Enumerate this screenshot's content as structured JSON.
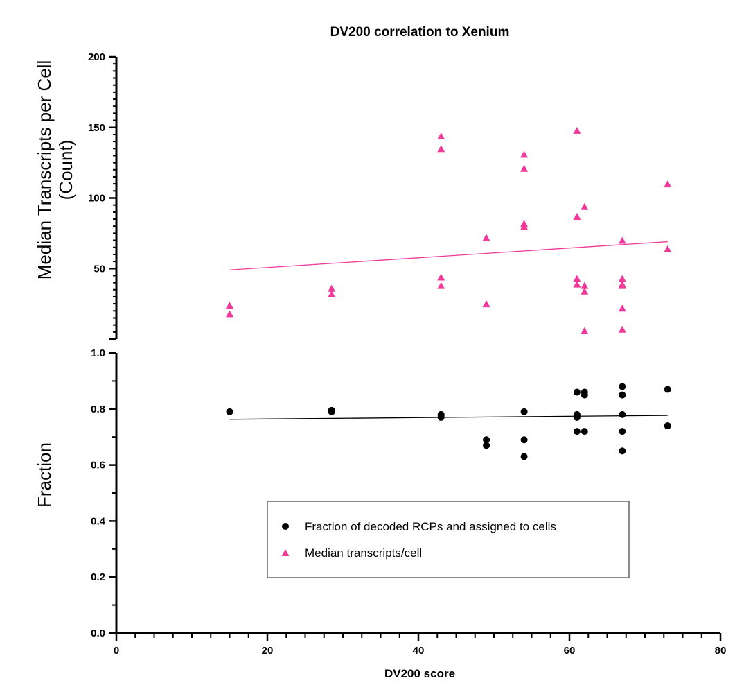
{
  "chart_data": {
    "type": "scatter",
    "title": "DV200 correlation to Xenium",
    "xlabel": "DV200 score",
    "xlim": [
      0,
      80
    ],
    "x_ticks": [
      "0",
      "20",
      "40",
      "60",
      "80"
    ],
    "grid": false,
    "legend_placement": "bottom-center",
    "panels": {
      "top": {
        "ylabel_line1": "Median Transcripts per Cell",
        "ylabel_line2": "(Count)",
        "ylim": [
          0,
          200
        ],
        "y_ticks": [
          "50",
          "100",
          "150",
          "200"
        ]
      },
      "bottom": {
        "ylabel": "Fraction",
        "ylim": [
          0,
          1.0
        ],
        "y_ticks": [
          "0.0",
          "0.2",
          "0.4",
          "0.6",
          "0.8",
          "1.0"
        ]
      }
    },
    "series": [
      {
        "name": "Fraction of decoded RCPs and assigned to cells",
        "panel": "bottom",
        "marker": "circle",
        "color": "#000000",
        "x": [
          15,
          28.5,
          28.5,
          43,
          43,
          43,
          49,
          49,
          54,
          54,
          54,
          61,
          61,
          61,
          61,
          61,
          62,
          62,
          62,
          67,
          67,
          67,
          67,
          67,
          73,
          73
        ],
        "y": [
          0.79,
          0.795,
          0.79,
          0.78,
          0.775,
          0.77,
          0.69,
          0.67,
          0.79,
          0.69,
          0.63,
          0.86,
          0.78,
          0.775,
          0.77,
          0.72,
          0.86,
          0.85,
          0.72,
          0.88,
          0.85,
          0.78,
          0.72,
          0.65,
          0.87,
          0.74
        ],
        "trend": [
          [
            15,
            0.763
          ],
          [
            73,
            0.777
          ]
        ]
      },
      {
        "name": "Median transcripts/cell",
        "panel": "top",
        "marker": "triangle",
        "color": "#f0399a",
        "x": [
          15,
          15,
          28.5,
          28.5,
          43,
          43,
          43,
          43,
          49,
          49,
          54,
          54,
          54,
          54,
          61,
          61,
          61,
          61,
          62,
          62,
          62,
          62,
          67,
          67,
          67,
          67,
          67,
          67,
          73,
          73
        ],
        "y": [
          24,
          18,
          36,
          32,
          144,
          135,
          44,
          38,
          72,
          25,
          131,
          121,
          82,
          80,
          148,
          87,
          43,
          39,
          94,
          38,
          34,
          6,
          70,
          43,
          39,
          38,
          22,
          7,
          110,
          64
        ],
        "trend": [
          [
            15,
            49
          ],
          [
            73,
            69
          ]
        ]
      }
    ]
  }
}
